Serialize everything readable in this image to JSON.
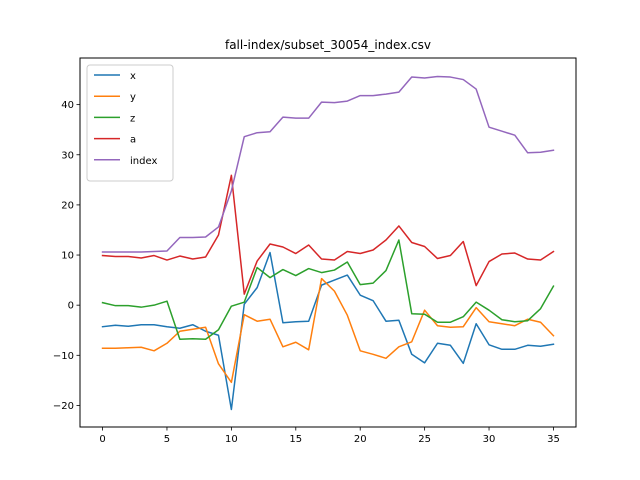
{
  "chart_data": {
    "type": "line",
    "title": "fall-index/subset_30054_index.csv",
    "xlabel": "",
    "ylabel": "",
    "xlim": [
      -1.75,
      36.75
    ],
    "ylim": [
      -24.3,
      49.3
    ],
    "xticks": [
      0,
      5,
      10,
      15,
      20,
      25,
      30,
      35
    ],
    "yticks": [
      -20,
      -10,
      0,
      10,
      20,
      30,
      40
    ],
    "xtick_labels": [
      "0",
      "5",
      "10",
      "15",
      "20",
      "25",
      "30",
      "35"
    ],
    "ytick_labels": [
      "−20",
      "−10",
      "0",
      "10",
      "20",
      "30",
      "40"
    ],
    "grid": false,
    "legend_position": "upper-left",
    "x": [
      0,
      1,
      2,
      3,
      4,
      5,
      6,
      7,
      8,
      9,
      10,
      11,
      12,
      13,
      14,
      15,
      16,
      17,
      18,
      19,
      20,
      21,
      22,
      23,
      24,
      25,
      26,
      27,
      28,
      29,
      30,
      31,
      32,
      33,
      34,
      35
    ],
    "series": [
      {
        "name": "x",
        "color": "#1f77b4",
        "values": [
          -4.3,
          -4.0,
          -4.2,
          -3.9,
          -3.9,
          -4.3,
          -4.6,
          -3.9,
          -5.2,
          -6.0,
          -20.8,
          0.2,
          3.5,
          10.5,
          -3.5,
          -3.3,
          -3.2,
          4.0,
          5.0,
          6.0,
          2.0,
          0.9,
          -3.2,
          -3.0,
          -9.8,
          -11.5,
          -7.6,
          -8.0,
          -11.6,
          -3.7,
          -7.9,
          -8.8,
          -8.8,
          -8.0,
          -8.2,
          -7.8
        ]
      },
      {
        "name": "y",
        "color": "#ff7f0e",
        "values": [
          -8.6,
          -8.6,
          -8.5,
          -8.4,
          -9.1,
          -7.6,
          -5.2,
          -4.8,
          -4.4,
          -11.7,
          -15.4,
          -1.9,
          -3.2,
          -2.8,
          -8.3,
          -7.4,
          -8.9,
          5.3,
          2.8,
          -2.0,
          -9.1,
          -9.8,
          -10.6,
          -8.3,
          -7.3,
          -1.0,
          -4.1,
          -4.4,
          -4.3,
          -0.5,
          -3.3,
          -3.7,
          -4.1,
          -2.8,
          -3.4,
          -6.1
        ]
      },
      {
        "name": "z",
        "color": "#2ca02c",
        "values": [
          0.5,
          -0.1,
          -0.1,
          -0.4,
          0.0,
          0.8,
          -6.8,
          -6.7,
          -6.8,
          -4.9,
          -0.2,
          0.6,
          7.5,
          5.5,
          7.1,
          5.9,
          7.3,
          6.5,
          7.0,
          8.6,
          4.1,
          4.4,
          6.9,
          13.0,
          -1.7,
          -1.8,
          -3.4,
          -3.4,
          -2.3,
          0.6,
          -1.0,
          -2.9,
          -3.3,
          -3.1,
          -0.7,
          3.8
        ]
      },
      {
        "name": "a",
        "color": "#d62728",
        "values": [
          9.9,
          9.7,
          9.7,
          9.4,
          9.9,
          9.0,
          9.8,
          9.2,
          9.6,
          14.0,
          25.9,
          2.2,
          8.8,
          12.2,
          11.6,
          10.3,
          12.0,
          9.2,
          9.0,
          10.7,
          10.3,
          11.0,
          13.0,
          15.8,
          12.5,
          11.7,
          9.3,
          9.9,
          12.7,
          3.9,
          8.7,
          10.2,
          10.4,
          9.2,
          9.0,
          10.7
        ]
      },
      {
        "name": "index",
        "color": "#9467bd",
        "values": [
          10.6,
          10.6,
          10.6,
          10.6,
          10.7,
          10.8,
          13.5,
          13.5,
          13.6,
          15.6,
          22.8,
          33.6,
          34.4,
          34.6,
          37.5,
          37.3,
          37.3,
          40.5,
          40.4,
          40.7,
          41.8,
          41.8,
          42.1,
          42.5,
          45.5,
          45.3,
          45.6,
          45.5,
          45.0,
          43.1,
          35.5,
          34.7,
          33.9,
          30.4,
          30.5,
          30.9
        ]
      }
    ]
  }
}
